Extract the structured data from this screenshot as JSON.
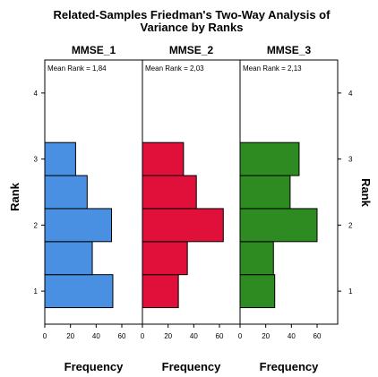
{
  "chart_data": {
    "type": "bar",
    "orientation": "horizontal",
    "title": "Related-Samples Friedman's Two-Way Analysis of Variance by Ranks",
    "ylabel": "Rank",
    "yticks": [
      "1",
      "2",
      "3",
      "4"
    ],
    "ylim": [
      0.5,
      4.5
    ],
    "xticks": [
      "0",
      "20",
      "40",
      "60"
    ],
    "xlim": [
      0,
      70
    ],
    "bin_edges": [
      0.75,
      1.25,
      1.75,
      2.25,
      2.75,
      3.25
    ],
    "panels": [
      {
        "name": "MMSE_1",
        "mean_rank_label": "Mean Rank = 1,84",
        "color": "#4A90E2",
        "xlabel": "Frequency",
        "values": [
          53,
          37,
          52,
          33,
          24
        ]
      },
      {
        "name": "MMSE_2",
        "mean_rank_label": "Mean Rank = 2,03",
        "color": "#E0103A",
        "xlabel": "Frequency",
        "values": [
          28,
          35,
          63,
          42,
          32
        ]
      },
      {
        "name": "MMSE_3",
        "mean_rank_label": "Mean Rank = 2,13",
        "color": "#2E8B22",
        "xlabel": "Frequency",
        "values": [
          27,
          26,
          60,
          39,
          46
        ]
      }
    ]
  }
}
